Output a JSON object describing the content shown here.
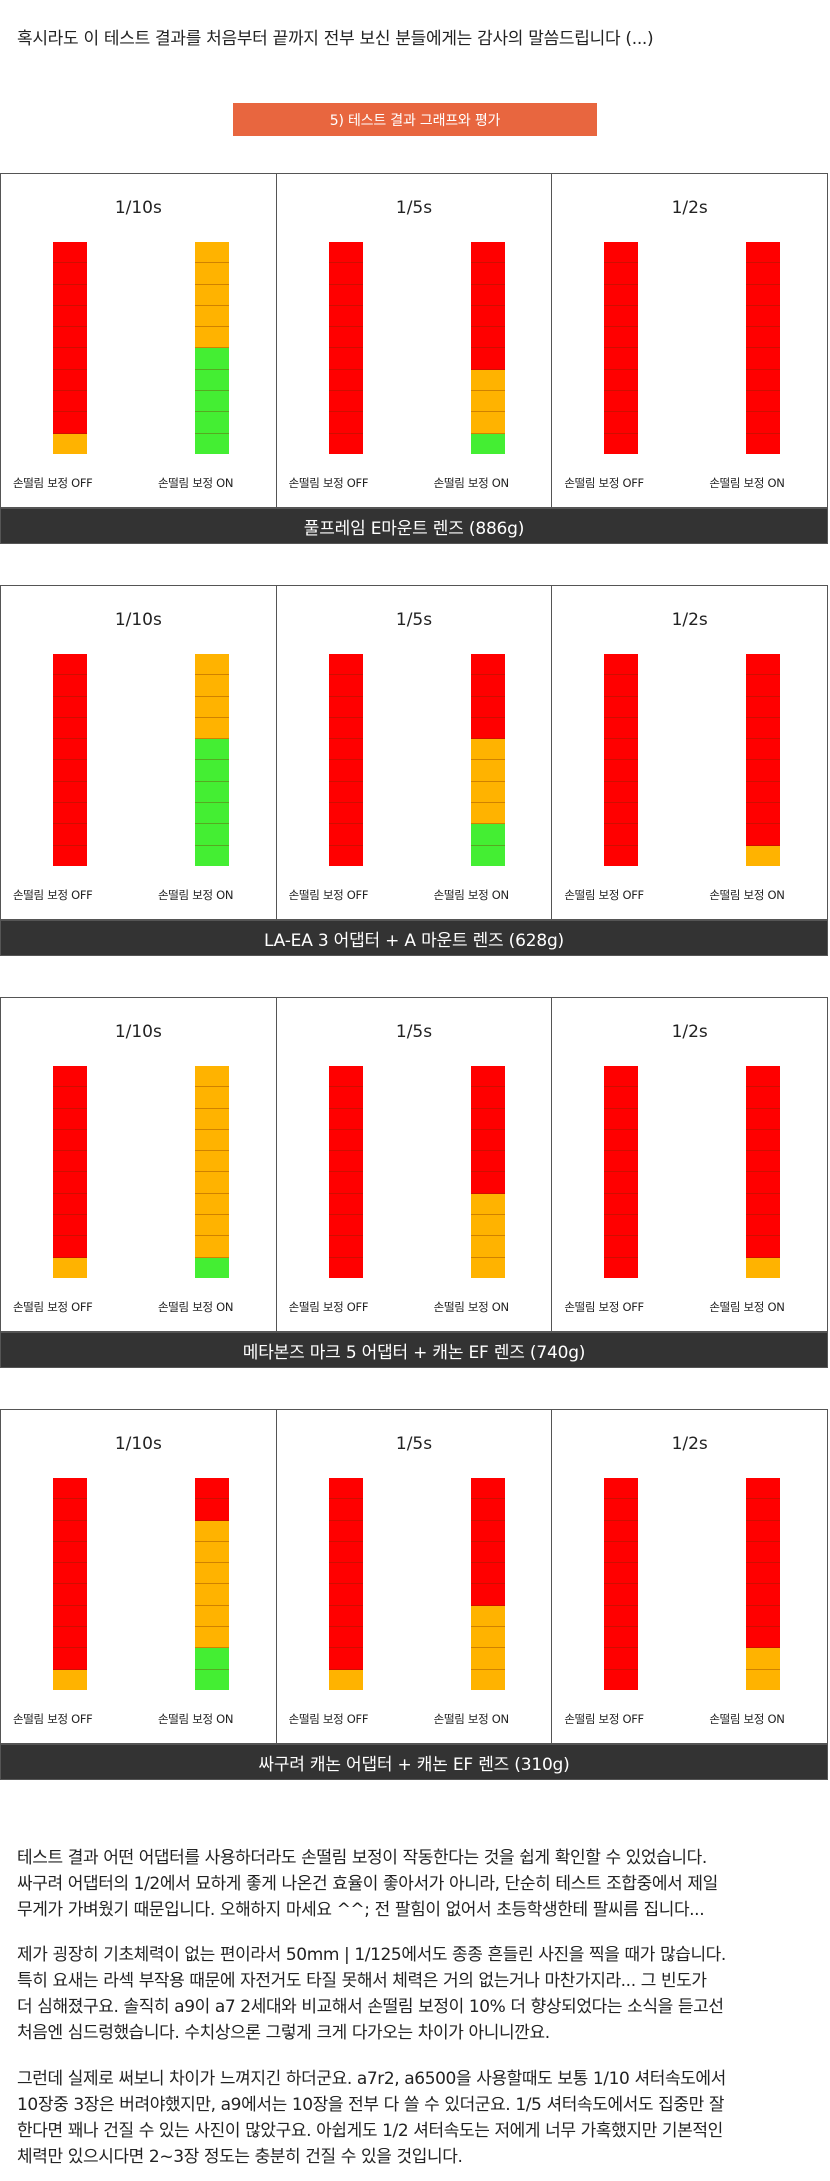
{
  "intro": "혹시라도 이 테스트 결과를 처음부터 끝까지 전부 보신 분들에게는 감사의 말씀드립니다 (...)",
  "section_title": "5) 테스트 결과 그래프와 평가",
  "colors": {
    "red": "#ff0000",
    "orange": "#ffb300",
    "green": "#44ee33",
    "accent": "#e8663f",
    "caption_bg": "#333333"
  },
  "label_off": "손떨림 보정 OFF",
  "label_on": "손떨림 보정 ON",
  "chart_data": [
    {
      "type": "table",
      "title": "풀프레임 E마운트 렌즈 (886g)",
      "groups": [
        {
          "speed": "1/10s",
          "off": [
            "R",
            "R",
            "R",
            "R",
            "R",
            "R",
            "R",
            "R",
            "R",
            "O"
          ],
          "on": [
            "O",
            "O",
            "O",
            "O",
            "O",
            "G",
            "G",
            "G",
            "G",
            "G"
          ]
        },
        {
          "speed": "1/5s",
          "off": [
            "R",
            "R",
            "R",
            "R",
            "R",
            "R",
            "R",
            "R",
            "R",
            "R"
          ],
          "on": [
            "R",
            "R",
            "R",
            "R",
            "R",
            "R",
            "O",
            "O",
            "O",
            "G"
          ]
        },
        {
          "speed": "1/2s",
          "off": [
            "R",
            "R",
            "R",
            "R",
            "R",
            "R",
            "R",
            "R",
            "R",
            "R"
          ],
          "on": [
            "R",
            "R",
            "R",
            "R",
            "R",
            "R",
            "R",
            "R",
            "R",
            "R"
          ]
        }
      ]
    },
    {
      "type": "table",
      "title": "LA-EA 3 어댑터 + A 마운트 렌즈 (628g)",
      "groups": [
        {
          "speed": "1/10s",
          "off": [
            "R",
            "R",
            "R",
            "R",
            "R",
            "R",
            "R",
            "R",
            "R",
            "R"
          ],
          "on": [
            "O",
            "O",
            "O",
            "O",
            "G",
            "G",
            "G",
            "G",
            "G",
            "G"
          ]
        },
        {
          "speed": "1/5s",
          "off": [
            "R",
            "R",
            "R",
            "R",
            "R",
            "R",
            "R",
            "R",
            "R",
            "R"
          ],
          "on": [
            "R",
            "R",
            "R",
            "R",
            "O",
            "O",
            "O",
            "O",
            "G",
            "G"
          ]
        },
        {
          "speed": "1/2s",
          "off": [
            "R",
            "R",
            "R",
            "R",
            "R",
            "R",
            "R",
            "R",
            "R",
            "R"
          ],
          "on": [
            "R",
            "R",
            "R",
            "R",
            "R",
            "R",
            "R",
            "R",
            "R",
            "O"
          ]
        }
      ]
    },
    {
      "type": "table",
      "title": "메타본즈 마크 5 어댑터 + 캐논 EF 렌즈 (740g)",
      "groups": [
        {
          "speed": "1/10s",
          "off": [
            "R",
            "R",
            "R",
            "R",
            "R",
            "R",
            "R",
            "R",
            "R",
            "O"
          ],
          "on": [
            "O",
            "O",
            "O",
            "O",
            "O",
            "O",
            "O",
            "O",
            "O",
            "G"
          ]
        },
        {
          "speed": "1/5s",
          "off": [
            "R",
            "R",
            "R",
            "R",
            "R",
            "R",
            "R",
            "R",
            "R",
            "R"
          ],
          "on": [
            "R",
            "R",
            "R",
            "R",
            "R",
            "R",
            "O",
            "O",
            "O",
            "O"
          ]
        },
        {
          "speed": "1/2s",
          "off": [
            "R",
            "R",
            "R",
            "R",
            "R",
            "R",
            "R",
            "R",
            "R",
            "R"
          ],
          "on": [
            "R",
            "R",
            "R",
            "R",
            "R",
            "R",
            "R",
            "R",
            "R",
            "O"
          ]
        }
      ]
    },
    {
      "type": "table",
      "title": "싸구려 캐논 어댑터 + 캐논 EF 렌즈 (310g)",
      "groups": [
        {
          "speed": "1/10s",
          "off": [
            "R",
            "R",
            "R",
            "R",
            "R",
            "R",
            "R",
            "R",
            "R",
            "O"
          ],
          "on": [
            "R",
            "R",
            "O",
            "O",
            "O",
            "O",
            "O",
            "O",
            "G",
            "G"
          ]
        },
        {
          "speed": "1/5s",
          "off": [
            "R",
            "R",
            "R",
            "R",
            "R",
            "R",
            "R",
            "R",
            "R",
            "O"
          ],
          "on": [
            "R",
            "R",
            "R",
            "R",
            "R",
            "R",
            "O",
            "O",
            "O",
            "O"
          ]
        },
        {
          "speed": "1/2s",
          "off": [
            "R",
            "R",
            "R",
            "R",
            "R",
            "R",
            "R",
            "R",
            "R",
            "R"
          ],
          "on": [
            "R",
            "R",
            "R",
            "R",
            "R",
            "R",
            "R",
            "R",
            "O",
            "O"
          ]
        }
      ]
    }
  ],
  "paragraphs": [
    [
      "테스트 결과 어떤 어댑터를 사용하더라도 손떨림 보정이 작동한다는 것을 쉽게 확인할 수 있었습니다.",
      "싸구려 어댑터의 1/2에서 묘하게 좋게 나온건 효율이 좋아서가 아니라, 단순히 테스트 조합중에서 제일",
      "무게가 가벼웠기 때문입니다. 오해하지 마세요 ^^; 전 팔힘이 없어서 초등학생한테 팔씨름 집니다..."
    ],
    [
      "제가 굉장히 기초체력이 없는 편이라서 50mm | 1/125에서도 종종 흔들린 사진을 찍을 때가 많습니다.",
      "특히 요새는 라섹 부작용 때문에 자전거도 타질 못해서 체력은 거의 없는거나 마찬가지라... 그 빈도가",
      "더 심해졌구요. 솔직히 a9이 a7 2세대와 비교해서 손떨림 보정이 10% 더 향상되었다는 소식을 듣고선",
      "처음엔 심드렁했습니다. 수치상으론 그렇게 크게 다가오는 차이가 아니니깐요."
    ],
    [
      "그런데 실제로 써보니 차이가 느껴지긴 하더군요. a7r2, a6500을 사용할때도 보통 1/10 셔터속도에서",
      "10장중 3장은 버려야했지만, a9에서는 10장을 전부 다 쓸 수 있더군요. 1/5 셔터속도에서도 집중만 잘",
      "한다면 꽤나 건질 수 있는 사진이 많았구요. 아쉽게도 1/2 셔터속도는 저에게 너무 가혹했지만 기본적인",
      "체력만 있으시다면 2~3장 정도는 충분히 건질 수 있을 것입니다."
    ]
  ]
}
